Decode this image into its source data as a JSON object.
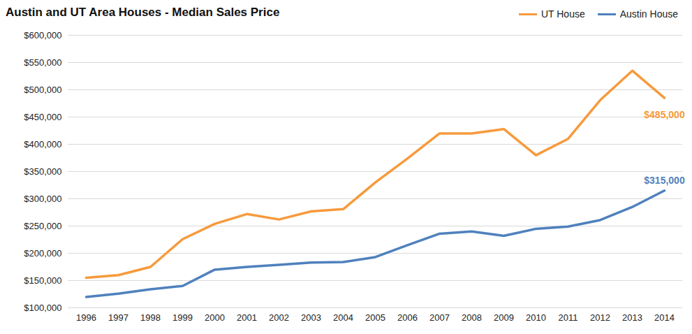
{
  "chart_data": {
    "type": "line",
    "title": "Austin and UT Area Houses - Median Sales Price",
    "categories": [
      "1996",
      "1997",
      "1998",
      "1999",
      "2000",
      "2001",
      "2002",
      "2003",
      "2004",
      "2005",
      "2006",
      "2007",
      "2008",
      "2009",
      "2010",
      "2011",
      "2012",
      "2013",
      "2014"
    ],
    "series": [
      {
        "name": "UT House",
        "color": "#f79a3c",
        "values": [
          155000,
          160000,
          175000,
          226000,
          254000,
          272000,
          262000,
          277000,
          281000,
          330000,
          374000,
          420000,
          420000,
          428000,
          380000,
          410000,
          481000,
          535000,
          485000
        ],
        "value_labels": [
          null,
          null,
          null,
          null,
          null,
          null,
          null,
          null,
          null,
          null,
          null,
          null,
          null,
          null,
          null,
          null,
          null,
          null,
          "$485,000"
        ]
      },
      {
        "name": "Austin House",
        "color": "#4f81bd",
        "values": [
          120000,
          126000,
          134000,
          140000,
          170000,
          175000,
          179000,
          183000,
          184000,
          193000,
          215000,
          236000,
          240000,
          232000,
          245000,
          249000,
          261000,
          285000,
          315000
        ],
        "value_labels": [
          null,
          null,
          null,
          null,
          null,
          null,
          null,
          null,
          null,
          null,
          null,
          null,
          null,
          null,
          null,
          null,
          null,
          null,
          "$315,000"
        ]
      }
    ],
    "ylim": [
      100000,
      600000
    ],
    "yticks": [
      {
        "value": 100000,
        "label": "$100,000"
      },
      {
        "value": 150000,
        "label": "$150,000"
      },
      {
        "value": 200000,
        "label": "$200,000"
      },
      {
        "value": 250000,
        "label": "$250,000"
      },
      {
        "value": 300000,
        "label": "$300,000"
      },
      {
        "value": 350000,
        "label": "$350,000"
      },
      {
        "value": 400000,
        "label": "$400,000"
      },
      {
        "value": 450000,
        "label": "$450,000"
      },
      {
        "value": 500000,
        "label": "$500,000"
      },
      {
        "value": 550000,
        "label": "$550,000"
      },
      {
        "value": 600000,
        "label": "$600,000"
      }
    ],
    "grid": true,
    "legend": "top-right",
    "data_labels": true
  }
}
